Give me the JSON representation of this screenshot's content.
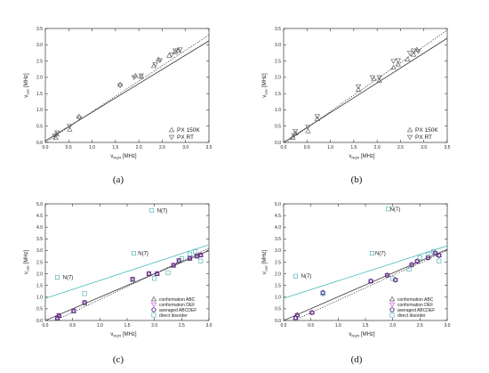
{
  "chart_data": [
    {
      "type": "scatter",
      "panel": "a",
      "caption": "(a)",
      "xlabel": "ν",
      "xlabel_sub": "NQR",
      "xlabel_unit": " [MHz]",
      "ylabel": "ν",
      "ylabel_sub": "calc",
      "ylabel_unit": " [MHz]",
      "xlim": [
        0.0,
        3.5
      ],
      "ylim": [
        0.0,
        3.5
      ],
      "xticks": [
        "0.0",
        "0.5",
        "1.0",
        "1.5",
        "2.0",
        "2.5",
        "3.0",
        "3.5"
      ],
      "yticks": [
        "0.0",
        "0.5",
        "1.0",
        "1.5",
        "2.0",
        "2.5",
        "3.0",
        "3.5"
      ],
      "legend_position": "bottom-right",
      "series": [
        {
          "name": "PX 150K",
          "marker": "triangle-up",
          "color": "#555555",
          "points": [
            [
              0.22,
              0.15
            ],
            [
              0.24,
              0.25
            ],
            [
              0.52,
              0.4
            ],
            [
              0.72,
              0.8
            ],
            [
              1.6,
              1.78
            ],
            [
              1.93,
              2.05
            ],
            [
              2.05,
              2.02
            ],
            [
              2.32,
              2.35
            ],
            [
              2.42,
              2.55
            ],
            [
              2.65,
              2.67
            ],
            [
              2.78,
              2.78
            ],
            [
              2.85,
              2.82
            ]
          ]
        },
        {
          "name": "PX RT",
          "marker": "triangle-down",
          "color": "#555555",
          "points": [
            [
              0.2,
              0.2
            ],
            [
              0.25,
              0.3
            ],
            [
              0.52,
              0.5
            ],
            [
              0.72,
              0.75
            ],
            [
              1.6,
              1.75
            ],
            [
              1.9,
              2.0
            ],
            [
              2.05,
              2.05
            ],
            [
              2.35,
              2.4
            ],
            [
              2.45,
              2.52
            ],
            [
              2.7,
              2.7
            ],
            [
              2.78,
              2.82
            ],
            [
              2.88,
              2.85
            ]
          ]
        }
      ],
      "lines": [
        {
          "style": "solid",
          "color": "#333333",
          "from": [
            0.0,
            0.05
          ],
          "to": [
            3.5,
            3.12
          ]
        },
        {
          "style": "dotted",
          "color": "#333333",
          "from": [
            0.0,
            0.0
          ],
          "to": [
            3.5,
            3.3
          ]
        }
      ]
    },
    {
      "type": "scatter",
      "panel": "b",
      "caption": "(b)",
      "xlabel": "ν",
      "xlabel_sub": "NQR",
      "xlabel_unit": " [MHz]",
      "ylabel": "ν",
      "ylabel_sub": "calc",
      "ylabel_unit": " [MHz]",
      "xlim": [
        0.0,
        3.5
      ],
      "ylim": [
        0.0,
        3.5
      ],
      "xticks": [
        "0.0",
        "0.5",
        "1.0",
        "1.5",
        "2.0",
        "2.5",
        "3.0",
        "3.5"
      ],
      "yticks": [
        "0.0",
        "0.5",
        "1.0",
        "1.5",
        "2.0",
        "2.5",
        "3.0",
        "3.5"
      ],
      "legend_position": "bottom-right",
      "series": [
        {
          "name": "PX 150K",
          "marker": "triangle-up",
          "color": "#555555",
          "points": [
            [
              0.2,
              0.15
            ],
            [
              0.25,
              0.28
            ],
            [
              0.52,
              0.35
            ],
            [
              0.72,
              0.72
            ],
            [
              1.6,
              1.62
            ],
            [
              1.93,
              1.95
            ],
            [
              2.05,
              1.9
            ],
            [
              2.35,
              2.3
            ],
            [
              2.45,
              2.4
            ],
            [
              2.65,
              2.55
            ],
            [
              2.78,
              2.7
            ],
            [
              2.85,
              2.85
            ]
          ]
        },
        {
          "name": "PX RT",
          "marker": "triangle-down",
          "color": "#555555",
          "points": [
            [
              0.22,
              0.22
            ],
            [
              0.25,
              0.35
            ],
            [
              0.52,
              0.48
            ],
            [
              0.72,
              0.8
            ],
            [
              1.6,
              1.72
            ],
            [
              1.9,
              2.0
            ],
            [
              2.05,
              2.0
            ],
            [
              2.35,
              2.5
            ],
            [
              2.45,
              2.52
            ],
            [
              2.7,
              2.75
            ],
            [
              2.78,
              2.82
            ],
            [
              2.88,
              2.8
            ]
          ]
        }
      ],
      "lines": [
        {
          "style": "solid",
          "color": "#333333",
          "from": [
            0.0,
            0.0
          ],
          "to": [
            3.5,
            3.2
          ]
        },
        {
          "style": "dotted",
          "color": "#333333",
          "from": [
            0.0,
            -0.05
          ],
          "to": [
            3.5,
            3.45
          ]
        }
      ]
    },
    {
      "type": "scatter",
      "panel": "c",
      "caption": "(c)",
      "xlabel": "ν",
      "xlabel_sub": "NQR",
      "xlabel_unit": " [MHz]",
      "ylabel": "ν",
      "ylabel_sub": "calc",
      "ylabel_unit": " [MHz]",
      "xlim": [
        0.0,
        3.0
      ],
      "ylim": [
        0.0,
        5.0
      ],
      "xticks": [
        "0.0",
        "0.5",
        "1.0",
        "1.5",
        "2.0",
        "2.5",
        "3.0"
      ],
      "yticks": [
        "0.0",
        "0.5",
        "1.0",
        "1.5",
        "2.0",
        "2.5",
        "3.0",
        "3.5",
        "4.0",
        "4.5",
        "5.0"
      ],
      "legend_position": "bottom-right",
      "annotations": [
        {
          "text": "N(7)",
          "at": [
            2.05,
            4.72
          ]
        },
        {
          "text": "N(7)",
          "at": [
            1.7,
            2.88
          ]
        },
        {
          "text": "N(7)",
          "at": [
            0.32,
            1.85
          ]
        }
      ],
      "series": [
        {
          "name": "conformation ABC",
          "marker": "triangle-up",
          "color": "#444444",
          "points": [
            [
              0.22,
              0.1
            ],
            [
              0.25,
              0.2
            ],
            [
              0.52,
              0.4
            ],
            [
              0.72,
              0.75
            ],
            [
              1.6,
              1.75
            ],
            [
              1.9,
              2.0
            ],
            [
              2.05,
              2.0
            ],
            [
              2.35,
              2.35
            ],
            [
              2.45,
              2.55
            ],
            [
              2.65,
              2.65
            ],
            [
              2.78,
              2.75
            ],
            [
              2.85,
              2.8
            ]
          ]
        },
        {
          "name": "conformation DEF",
          "marker": "triangle-down",
          "color": "#cc44cc",
          "points": [
            [
              0.22,
              0.12
            ],
            [
              0.25,
              0.22
            ],
            [
              0.52,
              0.42
            ],
            [
              0.72,
              0.78
            ],
            [
              1.6,
              1.78
            ],
            [
              1.9,
              2.02
            ],
            [
              2.05,
              2.02
            ],
            [
              2.35,
              2.38
            ],
            [
              2.45,
              2.58
            ],
            [
              2.65,
              2.68
            ],
            [
              2.78,
              2.78
            ],
            [
              2.85,
              2.82
            ]
          ]
        },
        {
          "name": "averaged ABCDEF",
          "marker": "circle",
          "color": "#4a2a8a",
          "points": [
            [
              0.22,
              0.11
            ],
            [
              0.25,
              0.21
            ],
            [
              0.52,
              0.41
            ],
            [
              0.72,
              0.77
            ],
            [
              1.6,
              1.77
            ],
            [
              1.9,
              2.01
            ],
            [
              2.05,
              2.01
            ],
            [
              2.35,
              2.37
            ],
            [
              2.45,
              2.57
            ],
            [
              2.65,
              2.67
            ],
            [
              2.78,
              2.77
            ],
            [
              2.85,
              2.81
            ]
          ]
        },
        {
          "name": "direct disorder",
          "marker": "square",
          "color": "#44aaaa",
          "points": [
            [
              0.22,
              1.85
            ],
            [
              0.72,
              1.15
            ],
            [
              1.62,
              2.88
            ],
            [
              1.95,
              4.72
            ],
            [
              2.0,
              1.8
            ],
            [
              2.25,
              2.05
            ],
            [
              2.5,
              2.65
            ],
            [
              2.65,
              2.85
            ],
            [
              2.75,
              2.95
            ],
            [
              2.85,
              2.55
            ]
          ]
        }
      ],
      "lines": [
        {
          "style": "solid",
          "color": "#333333",
          "from": [
            0.0,
            0.0
          ],
          "to": [
            3.0,
            3.0
          ]
        },
        {
          "style": "dotted",
          "color": "#333333",
          "from": [
            0.0,
            -0.2
          ],
          "to": [
            3.0,
            3.1
          ]
        },
        {
          "style": "solid",
          "color": "#44bbbb",
          "from": [
            0.0,
            0.95
          ],
          "to": [
            3.0,
            3.25
          ]
        }
      ]
    },
    {
      "type": "scatter",
      "panel": "d",
      "caption": "(d)",
      "xlabel": "ν",
      "xlabel_sub": "NQR",
      "xlabel_unit": " [MHz]",
      "ylabel": "ν",
      "ylabel_sub": "calc",
      "ylabel_unit": " [MHz]",
      "xlim": [
        0.0,
        3.0
      ],
      "ylim": [
        0.0,
        5.0
      ],
      "xticks": [
        "0.0",
        "0.5",
        "1.0",
        "1.5",
        "2.0",
        "2.5",
        "3.0"
      ],
      "yticks": [
        "0.0",
        "0.5",
        "1.0",
        "1.5",
        "2.0",
        "2.5",
        "3.0",
        "3.5",
        "4.0",
        "4.5",
        "5.0"
      ],
      "legend_position": "bottom-right",
      "annotations": [
        {
          "text": "N(7)",
          "at": [
            1.95,
            4.78
          ]
        },
        {
          "text": "N(7)",
          "at": [
            1.68,
            2.88
          ]
        },
        {
          "text": "N(7)",
          "at": [
            0.32,
            1.9
          ]
        }
      ],
      "series": [
        {
          "name": "conformation ABC",
          "marker": "triangle-up",
          "color": "#444444",
          "points": [
            [
              0.22,
              0.12
            ],
            [
              0.25,
              0.25
            ],
            [
              0.52,
              0.35
            ],
            [
              0.72,
              1.2
            ],
            [
              1.6,
              1.7
            ],
            [
              1.9,
              1.95
            ],
            [
              2.05,
              1.75
            ],
            [
              2.35,
              2.4
            ],
            [
              2.45,
              2.55
            ],
            [
              2.65,
              2.7
            ],
            [
              2.78,
              2.9
            ],
            [
              2.85,
              2.8
            ]
          ]
        },
        {
          "name": "conformation DEF",
          "marker": "triangle-down",
          "color": "#cc44cc",
          "points": [
            [
              0.22,
              0.1
            ],
            [
              0.25,
              0.22
            ],
            [
              0.52,
              0.33
            ],
            [
              0.72,
              1.18
            ],
            [
              1.6,
              1.68
            ],
            [
              1.9,
              1.93
            ],
            [
              2.05,
              1.73
            ],
            [
              2.35,
              2.38
            ],
            [
              2.45,
              2.53
            ],
            [
              2.65,
              2.68
            ],
            [
              2.78,
              2.88
            ],
            [
              2.85,
              2.78
            ]
          ]
        },
        {
          "name": "averaged ABCDEF",
          "marker": "circle",
          "color": "#4a2a8a",
          "points": [
            [
              0.22,
              0.11
            ],
            [
              0.25,
              0.23
            ],
            [
              0.52,
              0.34
            ],
            [
              0.72,
              1.19
            ],
            [
              1.6,
              1.69
            ],
            [
              1.9,
              1.94
            ],
            [
              2.05,
              1.74
            ],
            [
              2.35,
              2.39
            ],
            [
              2.45,
              2.54
            ],
            [
              2.65,
              2.69
            ],
            [
              2.78,
              2.89
            ],
            [
              2.85,
              2.79
            ]
          ]
        },
        {
          "name": "direct disorder",
          "marker": "square",
          "color": "#44aaaa",
          "points": [
            [
              0.22,
              1.9
            ],
            [
              0.72,
              1.15
            ],
            [
              1.62,
              2.88
            ],
            [
              1.92,
              4.78
            ],
            [
              2.0,
              1.8
            ],
            [
              2.3,
              2.2
            ],
            [
              2.5,
              2.7
            ],
            [
              2.65,
              2.85
            ],
            [
              2.75,
              2.95
            ],
            [
              2.85,
              2.55
            ]
          ]
        }
      ],
      "lines": [
        {
          "style": "solid",
          "color": "#333333",
          "from": [
            0.0,
            0.0
          ],
          "to": [
            3.0,
            3.05
          ]
        },
        {
          "style": "dotted",
          "color": "#333333",
          "from": [
            0.0,
            -0.2
          ],
          "to": [
            3.0,
            3.0
          ]
        },
        {
          "style": "solid",
          "color": "#44bbbb",
          "from": [
            0.0,
            0.95
          ],
          "to": [
            3.0,
            3.2
          ]
        }
      ]
    }
  ]
}
